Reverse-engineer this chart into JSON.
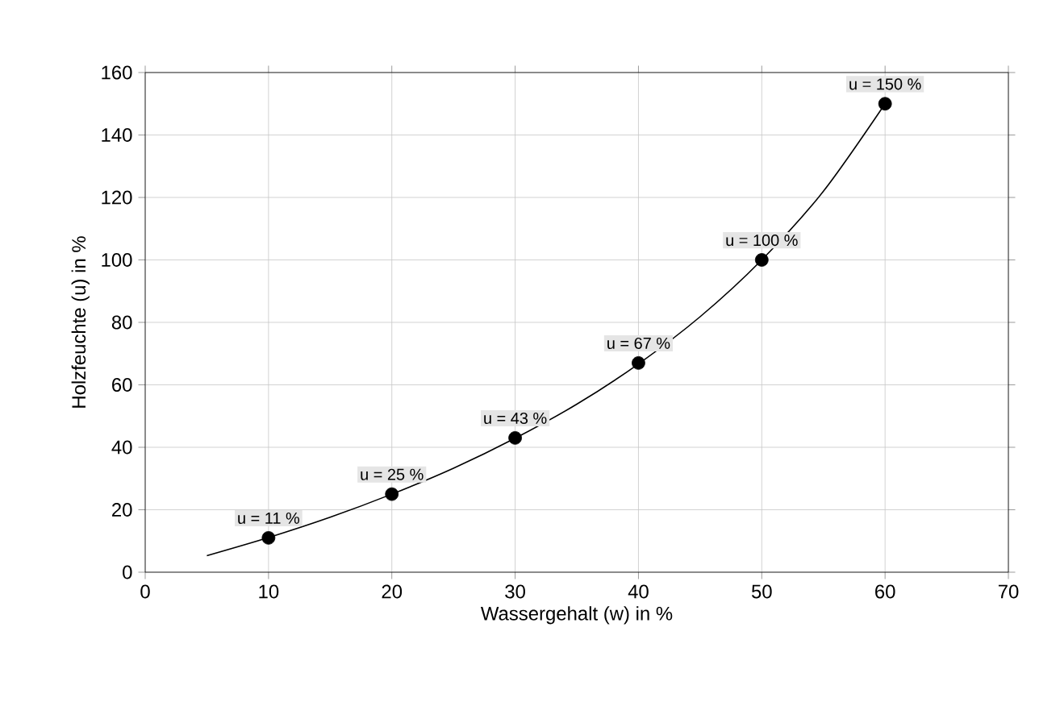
{
  "chart_data": {
    "type": "line",
    "xlabel": "Wassergehalt (w) in %",
    "ylabel": "Holzfeuchte (u) in %",
    "xlim": [
      0,
      70
    ],
    "ylim": [
      0,
      160
    ],
    "xticks": [
      0,
      10,
      20,
      30,
      40,
      50,
      60,
      70
    ],
    "yticks": [
      0,
      20,
      40,
      60,
      80,
      100,
      120,
      140,
      160
    ],
    "grid": true,
    "series": [
      {
        "color": "#000000",
        "marker": "none",
        "x": [
          5,
          10,
          15,
          20,
          25,
          30,
          35,
          40,
          45,
          50,
          55,
          60
        ],
        "values": [
          5.3,
          11.1,
          17.6,
          25,
          33.3,
          42.9,
          53.8,
          66.7,
          81.8,
          100,
          122,
          150
        ]
      },
      {
        "type": "scatter",
        "marker": "circle",
        "color": "#000000",
        "x": [
          10,
          20,
          30,
          40,
          50,
          60
        ],
        "values": [
          11,
          25,
          43,
          67,
          100,
          150
        ],
        "value_labels": [
          "u = 11 %",
          "u = 25 %",
          "u = 43 %",
          "u = 67 %",
          "u = 100 %",
          "u = 150 %"
        ]
      }
    ]
  }
}
